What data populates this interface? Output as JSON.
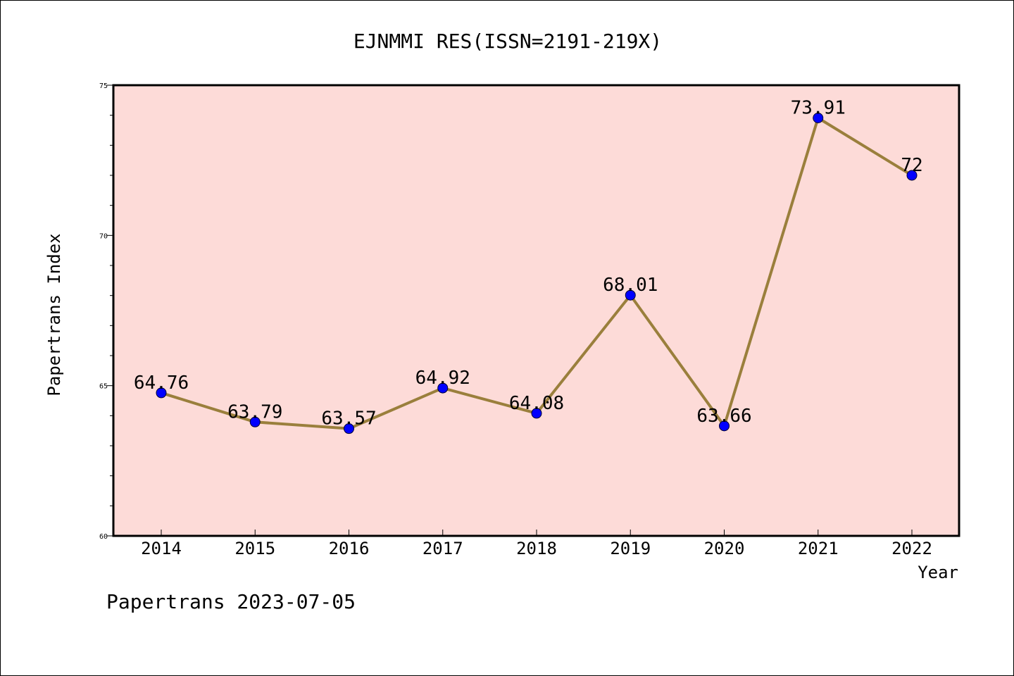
{
  "chart_data": {
    "type": "line",
    "title": "EJNMMI RES(ISSN=2191-219X)",
    "xlabel": "Year",
    "ylabel": "Papertrans Index",
    "categories": [
      "2014",
      "2015",
      "2016",
      "2017",
      "2018",
      "2019",
      "2020",
      "2021",
      "2022"
    ],
    "series": [
      {
        "values": [
          64.76,
          63.79,
          63.57,
          64.92,
          64.08,
          68.01,
          63.66,
          73.91,
          72
        ],
        "labels": [
          "64.76",
          "63.79",
          "63.57",
          "64.92",
          "64.08",
          "68.01",
          "63.66",
          "73.91",
          "72"
        ],
        "line_color": "#9a7f3c",
        "marker_color": "#0000ff"
      }
    ],
    "ylim": [
      60,
      75
    ],
    "yticks": [
      "60",
      "65",
      "70",
      "75"
    ],
    "grid": false,
    "plot_background": "#fddbd8"
  },
  "footer": {
    "text": "Papertrans 2023-07-05"
  }
}
